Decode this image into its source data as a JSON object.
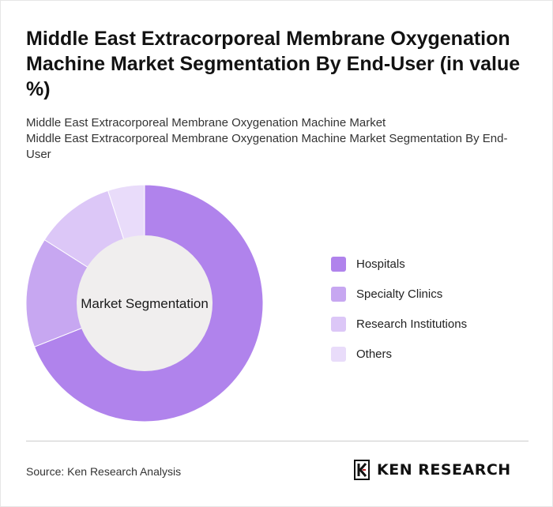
{
  "title": "Middle East Extracorporeal Membrane Oxygenation Machine Market Segmentation By End-User (in value %)",
  "subtitle": {
    "line1": "Middle East Extracorporeal Membrane Oxygenation Machine Market",
    "line2": "Middle East Extracorporeal Membrane Oxygenation Machine Market Segmentation By End-User"
  },
  "center_label": "Market Segmentation",
  "source": "Source: Ken Research Analysis",
  "brand": "KEN RESEARCH",
  "colors": {
    "hospitals": "#b083ec",
    "specialty_clinics": "#c7a7f1",
    "research_institutions": "#dcc7f7",
    "others": "#e9dcfa",
    "center": "#f0eeee"
  },
  "chart_data": {
    "type": "pie",
    "variant": "donut",
    "categories": [
      "Hospitals",
      "Specialty Clinics",
      "Research Institutions",
      "Others"
    ],
    "values": [
      69,
      15,
      11,
      5
    ],
    "legend_position": "right"
  }
}
